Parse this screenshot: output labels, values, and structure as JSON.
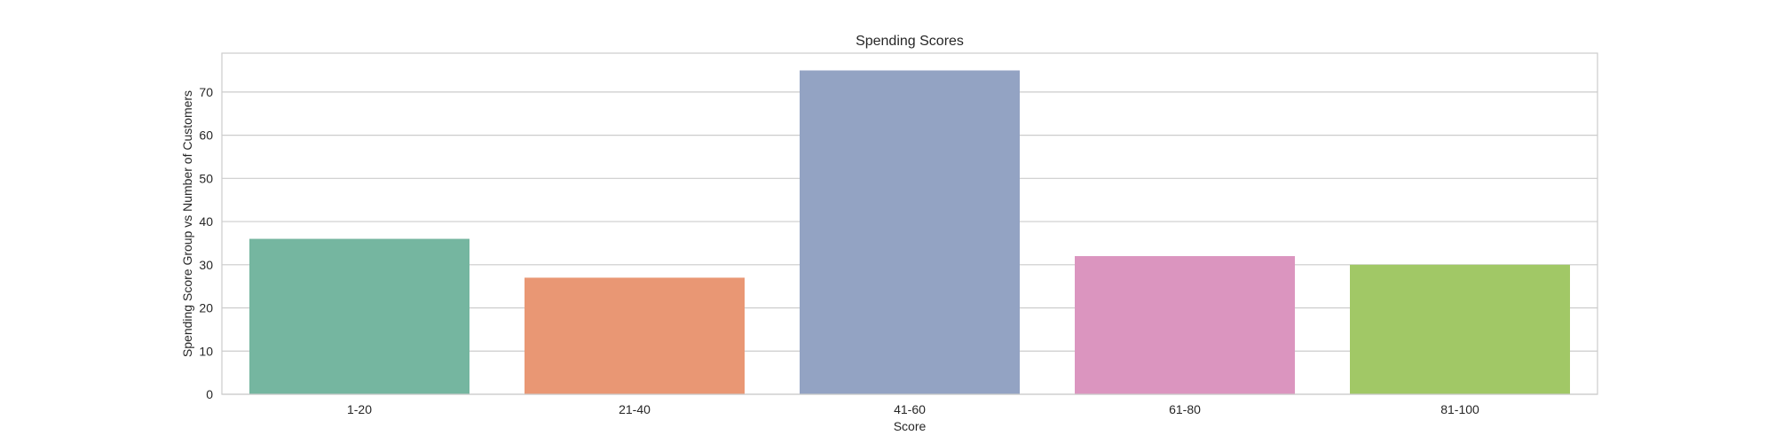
{
  "chart_data": {
    "type": "bar",
    "title": "Spending Scores",
    "xlabel": "Score",
    "ylabel": "Spending Score Group vs Number of Customers",
    "categories": [
      "1-20",
      "21-40",
      "41-60",
      "61-80",
      "81-100"
    ],
    "values": [
      36,
      27,
      75,
      32,
      30
    ],
    "colors": [
      "#75b6a0",
      "#e99774",
      "#93a3c3",
      "#db95bf",
      "#a1c866"
    ],
    "ylim": [
      0,
      79
    ],
    "yticks": [
      0,
      10,
      20,
      30,
      40,
      50,
      60,
      70
    ],
    "grid": true,
    "legend": "none"
  }
}
